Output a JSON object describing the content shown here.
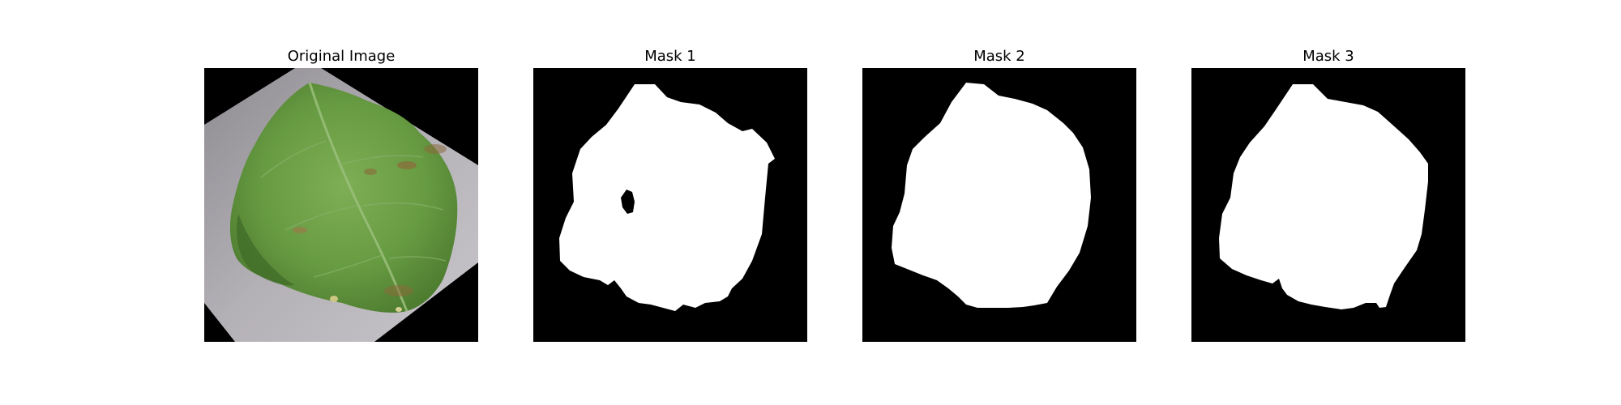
{
  "figure": {
    "panels": [
      {
        "title": "Original Image",
        "content": "leaf-photo"
      },
      {
        "title": "Mask 1",
        "content": "binary-mask"
      },
      {
        "title": "Mask 2",
        "content": "binary-mask"
      },
      {
        "title": "Mask 3",
        "content": "binary-mask"
      }
    ]
  },
  "colors": {
    "background": "#ffffff",
    "mask_foreground": "#ffffff",
    "mask_background": "#000000",
    "leaf_green": "#6a9a45",
    "paper_gray": "#a4a0a8"
  }
}
